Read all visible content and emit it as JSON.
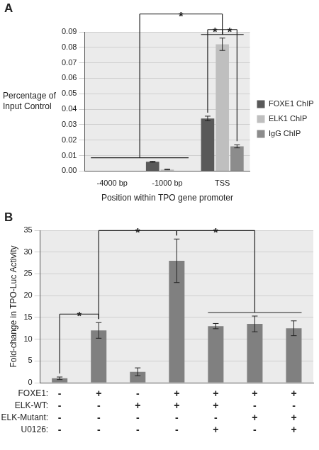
{
  "chart_data": [
    {
      "type": "bar",
      "panel_label": "A",
      "x_label": "Position within TPO gene promoter",
      "y_label": "Percentage of Input Control",
      "categories": [
        "-4000 bp",
        "-1000 bp",
        "TSS"
      ],
      "series": [
        {
          "name": "FOXE1 ChIP",
          "color": "#595959",
          "values": [
            0,
            0.006,
            0.034
          ],
          "errors": [
            0,
            0.0003,
            0.0015
          ]
        },
        {
          "name": "ELK1 ChIP",
          "color": "#bfbfbf",
          "values": [
            0,
            0.001,
            0.082
          ],
          "errors": [
            0,
            0.0002,
            0.004
          ]
        },
        {
          "name": "IgG ChIP",
          "color": "#8c8c8c",
          "values": [
            0,
            0,
            0.016
          ],
          "errors": [
            0,
            0,
            0.001
          ]
        }
      ],
      "ylim": [
        0,
        0.09
      ],
      "yticks": [
        {
          "value": 0,
          "label": "0.00"
        },
        {
          "value": 0.01,
          "label": "0.01"
        },
        {
          "value": 0.02,
          "label": "0.02"
        },
        {
          "value": 0.03,
          "label": "0.03"
        },
        {
          "value": 0.04,
          "label": "0.04"
        },
        {
          "value": 0.05,
          "label": "0.05"
        },
        {
          "value": 0.06,
          "label": "0.06"
        },
        {
          "value": 0.07,
          "label": "0.07"
        },
        {
          "value": 0.08,
          "label": "0.08"
        },
        {
          "value": 0.09,
          "label": "0.09"
        }
      ],
      "grid": true,
      "legend": "right",
      "significance": [
        {
          "label": "*",
          "from": [
            [
              2,
              0
            ]
          ],
          "to": [
            [
              2,
              1
            ]
          ]
        },
        {
          "label": "*",
          "from": [
            [
              2,
              1
            ]
          ],
          "to": [
            [
              2,
              2
            ]
          ]
        },
        {
          "label": "*",
          "from": [
            [
              0,
              0
            ],
            [
              0,
              1
            ],
            [
              0,
              2
            ],
            [
              1,
              0
            ],
            [
              1,
              1
            ],
            [
              1,
              2
            ]
          ],
          "to": [
            [
              2,
              0
            ],
            [
              2,
              1
            ],
            [
              2,
              2
            ]
          ]
        }
      ]
    },
    {
      "type": "bar",
      "panel_label": "B",
      "y_label": "Fold-change in TPO-Luc Activity",
      "categories": [
        null,
        null,
        null,
        null,
        null,
        null,
        null
      ],
      "values": [
        1,
        12,
        2.5,
        28,
        13,
        13.5,
        12.5
      ],
      "errors": [
        0.3,
        1.8,
        0.9,
        5,
        0.6,
        1.8,
        1.7
      ],
      "color": "#808080",
      "ylim": [
        0,
        35
      ],
      "yticks": [
        0,
        5,
        10,
        15,
        20,
        25,
        30,
        35
      ],
      "grid": true,
      "tick_labels": "y",
      "treatments": [
        {
          "name": "FOXE1:",
          "values": [
            "-",
            "+",
            "-",
            "+",
            "+",
            "+",
            "+"
          ]
        },
        {
          "name": "ELK-WT:",
          "values": [
            "-",
            "-",
            "+",
            "+",
            "+",
            "-",
            "-"
          ]
        },
        {
          "name": "ELK-Mutant:",
          "values": [
            "-",
            "-",
            "-",
            "-",
            "-",
            "+",
            "+"
          ]
        },
        {
          "name": "U0126:",
          "values": [
            "-",
            "-",
            "-",
            "-",
            "+",
            "-",
            "+"
          ]
        }
      ],
      "significance": [
        {
          "label": "*",
          "from": [
            0
          ],
          "to": [
            1
          ]
        },
        {
          "label": "*",
          "from": [
            1
          ],
          "to": [
            3
          ]
        },
        {
          "label": "*",
          "from": [
            3
          ],
          "to": [
            4,
            5,
            6
          ]
        }
      ]
    }
  ]
}
